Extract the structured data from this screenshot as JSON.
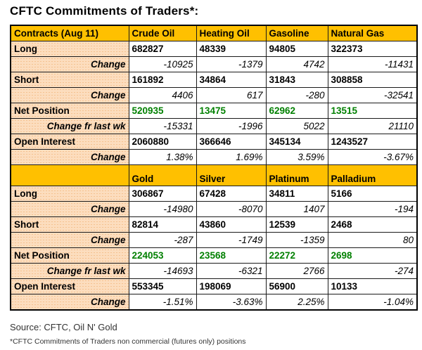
{
  "title": "CFTC Commitments of Traders*:",
  "colors": {
    "header_bg": "#FFC000",
    "label_bg": "#FCDDBE",
    "net_position_green": "#008000",
    "border": "#000000"
  },
  "chart_data": [
    {
      "type": "table",
      "columns": [
        "Contracts (Aug 11)",
        "Crude Oil",
        "Heating Oil",
        "Gasoline",
        "Natural Gas"
      ],
      "rows": [
        {
          "label": "Long",
          "style": "main",
          "values": [
            "682827",
            "48339",
            "94805",
            "322373"
          ]
        },
        {
          "label": "Change",
          "style": "change",
          "values": [
            "-10925",
            "-1379",
            "4742",
            "-11431"
          ]
        },
        {
          "label": "Short",
          "style": "main",
          "values": [
            "161892",
            "34864",
            "31843",
            "308858"
          ]
        },
        {
          "label": "Change",
          "style": "change",
          "values": [
            "4406",
            "617",
            "-280",
            "-32541"
          ]
        },
        {
          "label": "Net Position",
          "style": "net",
          "values": [
            "520935",
            "13475",
            "62962",
            "13515"
          ]
        },
        {
          "label": "Change fr last wk",
          "style": "change",
          "values": [
            "-15331",
            "-1996",
            "5022",
            "21110"
          ]
        },
        {
          "label": "Open Interest",
          "style": "main",
          "values": [
            "2060880",
            "366646",
            "345134",
            "1243527"
          ]
        },
        {
          "label": "Change",
          "style": "change",
          "values": [
            "1.38%",
            "1.69%",
            "3.59%",
            "-3.67%"
          ]
        }
      ]
    },
    {
      "type": "table",
      "columns": [
        "",
        "Gold",
        "Silver",
        "Platinum",
        "Palladium"
      ],
      "rows": [
        {
          "label": "Long",
          "style": "main",
          "values": [
            "306867",
            "67428",
            "34811",
            "5166"
          ]
        },
        {
          "label": "Change",
          "style": "change",
          "values": [
            "-14980",
            "-8070",
            "1407",
            "-194"
          ]
        },
        {
          "label": "Short",
          "style": "main",
          "values": [
            "82814",
            "43860",
            "12539",
            "2468"
          ]
        },
        {
          "label": "Change",
          "style": "change",
          "values": [
            "-287",
            "-1749",
            "-1359",
            "80"
          ]
        },
        {
          "label": "Net Position",
          "style": "net",
          "values": [
            "224053",
            "23568",
            "22272",
            "2698"
          ]
        },
        {
          "label": "Change fr last wk",
          "style": "change",
          "values": [
            "-14693",
            "-6321",
            "2766",
            "-274"
          ]
        },
        {
          "label": "Open Interest",
          "style": "main",
          "values": [
            "553345",
            "198069",
            "56900",
            "10133"
          ]
        },
        {
          "label": "Change",
          "style": "change",
          "values": [
            "-1.51%",
            "-3.63%",
            "2.25%",
            "-1.04%"
          ]
        }
      ]
    }
  ],
  "footer": {
    "source": "Source: CFTC, Oil N' Gold",
    "footnote": "*CFTC Commitments of Traders non commercial (futures only) positions"
  }
}
